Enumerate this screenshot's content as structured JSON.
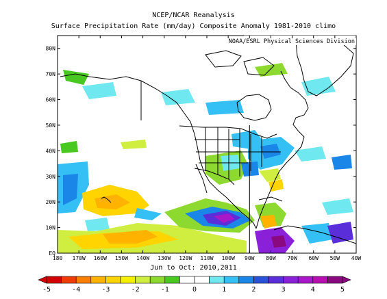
{
  "header": {
    "title": "NCEP/NCAR Reanalysis",
    "subtitle": "Surface Precipitation Rate (mm/day) Composite Anomaly 1981-2010 climo"
  },
  "map": {
    "credit": "NOAA/ESRL Physical Sciences Division",
    "lat_labels": [
      "80N",
      "70N",
      "60N",
      "50N",
      "40N",
      "30N",
      "20N",
      "10N",
      "EQ"
    ],
    "lon_labels": [
      "180",
      "170W",
      "160W",
      "150W",
      "140W",
      "130W",
      "120W",
      "110W",
      "100W",
      "90W",
      "80W",
      "70W",
      "60W",
      "50W",
      "40W"
    ],
    "extent": {
      "lon_min": -180,
      "lon_max": -40,
      "lat_min": 0,
      "lat_max": 85
    }
  },
  "caption": "Jun to Oct: 2010,2011",
  "colorbar": {
    "labels": [
      "-5",
      "-4",
      "-3",
      "-2",
      "-1",
      "0",
      "1",
      "2",
      "3",
      "4",
      "5"
    ],
    "colors": [
      "#d40000",
      "#f03c00",
      "#fb7e00",
      "#ffb300",
      "#ffd400",
      "#f4f000",
      "#cfee40",
      "#8ed92f",
      "#48c820",
      "#ffffff",
      "#ffffff",
      "#6fe8f0",
      "#34bff5",
      "#1a86e8",
      "#2a52d8",
      "#5a2ed8",
      "#8a20d8",
      "#a818c8",
      "#b810b0",
      "#8a0880"
    ]
  }
}
